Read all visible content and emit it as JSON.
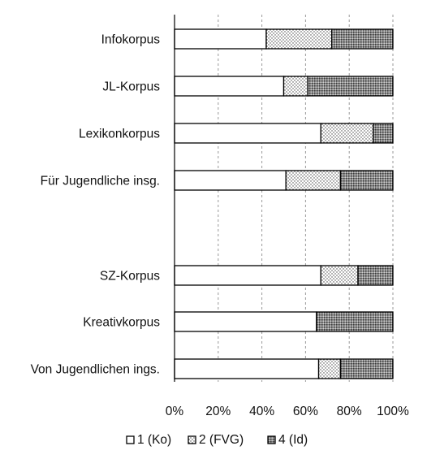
{
  "chart_data": {
    "type": "bar",
    "orientation": "horizontal",
    "stacked": "percent",
    "title": "",
    "xlabel": "",
    "ylabel": "",
    "xlim": [
      0,
      100
    ],
    "x_ticks": [
      "0%",
      "20%",
      "40%",
      "60%",
      "80%",
      "100%"
    ],
    "grid": "vertical dashed",
    "legend_position": "bottom",
    "categories": [
      "Infokorpus",
      "JL-Korpus",
      "Lexikonkorpus",
      "Für Jugendliche insg.",
      "",
      "SZ-Korpus",
      "Kreativkorpus",
      "Von Jugendlichen ings."
    ],
    "series": [
      {
        "name": "1 (Ko)",
        "pattern": "blank",
        "values": [
          42,
          50,
          67,
          51,
          null,
          67,
          65,
          66
        ]
      },
      {
        "name": "2 (FVG)",
        "pattern": "dotted",
        "values": [
          30,
          11,
          24,
          25,
          null,
          17,
          0,
          10
        ]
      },
      {
        "name": "4 (Id)",
        "pattern": "dense",
        "values": [
          28,
          39,
          9,
          24,
          null,
          16,
          35,
          24
        ]
      }
    ]
  }
}
